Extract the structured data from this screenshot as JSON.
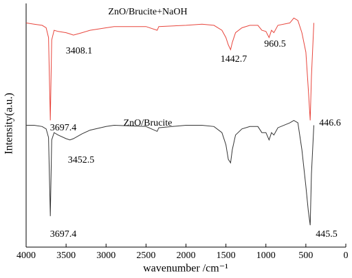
{
  "chart_data": {
    "type": "line",
    "xlabel": "wavenumber /cm⁻¹",
    "ylabel": "Intensity(a.u.)",
    "xlim": [
      4000,
      0
    ],
    "xticks": [
      4000,
      3500,
      3000,
      2500,
      2000,
      1500,
      1000,
      500,
      0
    ],
    "ylim": [
      0,
      100
    ],
    "x": [
      4000,
      3900,
      3800,
      3750,
      3720,
      3697,
      3680,
      3650,
      3600,
      3500,
      3452,
      3408,
      3300,
      3200,
      3000,
      2900,
      2500,
      2360,
      2340,
      2000,
      1800,
      1650,
      1550,
      1500,
      1470,
      1442,
      1420,
      1380,
      1300,
      1200,
      1100,
      1050,
      1000,
      960,
      930,
      900,
      850,
      700,
      650,
      600,
      550,
      500,
      470,
      446,
      430,
      400
    ],
    "series": [
      {
        "name": "ZnO/Brucite+NaOH",
        "color": "#e8453c",
        "label_color": "#e02020",
        "values": [
          92,
          91.5,
          91,
          90,
          86,
          52,
          85,
          89,
          88.5,
          88,
          87.5,
          87,
          88,
          89,
          90,
          90.5,
          90.5,
          89,
          90.5,
          91,
          91.5,
          91,
          89,
          86,
          83,
          81,
          84,
          88,
          90,
          91,
          91,
          89,
          88.5,
          86,
          89,
          88,
          91,
          92,
          94,
          93,
          88,
          80,
          65,
          52,
          70,
          92
        ]
      },
      {
        "name": "ZnO/Brucite",
        "color": "#333333",
        "label_color": "#000000",
        "values": [
          50,
          50,
          49.5,
          48.5,
          45,
          12.7,
          44,
          47,
          46,
          44.5,
          44,
          44.5,
          46.5,
          48,
          49.5,
          50,
          49.5,
          47.5,
          49,
          50,
          50,
          49.5,
          47,
          42,
          36,
          34.6,
          40,
          46,
          48.5,
          49.5,
          49.5,
          47,
          47,
          44,
          47,
          46,
          49,
          51,
          52,
          51,
          40,
          25,
          15,
          9,
          30,
          50
        ]
      }
    ],
    "annotations": [
      "3408.1",
      "1442.7",
      "960.5",
      "3697.4",
      "446.6",
      "3452.5",
      "3697.4",
      "445.5"
    ]
  }
}
